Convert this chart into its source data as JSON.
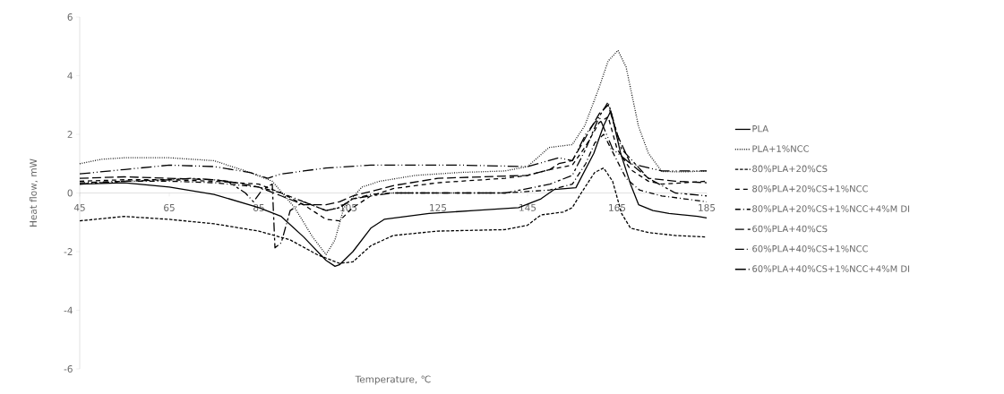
{
  "chart_data": {
    "type": "line",
    "xlabel": "Temperature, ℃",
    "ylabel": "Heat flow, mW",
    "xlim": [
      45,
      185
    ],
    "ylim": [
      -6,
      6
    ],
    "xticks": [
      45,
      65,
      85,
      105,
      125,
      145,
      165,
      185
    ],
    "yticks": [
      -6,
      -4,
      -2,
      0,
      2,
      4,
      6
    ],
    "legend": "right",
    "grid": false,
    "marker": "none",
    "series": [
      {
        "name": "PLA",
        "color": "#000000",
        "line_style": "solid",
        "x": [
          45,
          55,
          65,
          75,
          85,
          90,
          95,
          100,
          102,
          103,
          106,
          110,
          113,
          118,
          123,
          133,
          143,
          148,
          151,
          155.8,
          159.8,
          162,
          163.6,
          165.8,
          168,
          169.8,
          173,
          176.6,
          183,
          185
        ],
        "values": [
          0.3,
          0.35,
          0.2,
          -0.05,
          -0.5,
          -0.8,
          -1.5,
          -2.3,
          -2.5,
          -2.45,
          -2.0,
          -1.2,
          -0.9,
          -0.8,
          -0.7,
          -0.6,
          -0.5,
          -0.2,
          0.12,
          0.18,
          1.35,
          2.3,
          2.8,
          1.35,
          0.3,
          -0.4,
          -0.6,
          -0.7,
          -0.8,
          -0.85
        ]
      },
      {
        "name": "PLA+1%NCC",
        "color": "#000000",
        "line_style": "dotted",
        "x": [
          45,
          50,
          55,
          65,
          75,
          83,
          88,
          93,
          97,
          100,
          102,
          104,
          108,
          112,
          120,
          130,
          140,
          145,
          149.8,
          155,
          157.8,
          161,
          163,
          165.2,
          167,
          169.8,
          172,
          175,
          180,
          185
        ],
        "values": [
          1.0,
          1.15,
          1.2,
          1.2,
          1.1,
          0.7,
          0.4,
          -0.5,
          -1.5,
          -2.1,
          -1.6,
          -0.5,
          0.2,
          0.4,
          0.6,
          0.7,
          0.75,
          0.9,
          1.55,
          1.65,
          2.3,
          3.6,
          4.5,
          4.86,
          4.3,
          2.26,
          1.35,
          0.73,
          0.72,
          0.75
        ]
      },
      {
        "name": "80%PLA+20%CS",
        "color": "#000000",
        "line_style": "dashed",
        "x": [
          45,
          55,
          65,
          75,
          85,
          92,
          98,
          103,
          106,
          110,
          115,
          125,
          140,
          145,
          148,
          153,
          155,
          157,
          160,
          162,
          164,
          166,
          168,
          172,
          178,
          185
        ],
        "values": [
          -0.95,
          -0.8,
          -0.9,
          -1.05,
          -1.3,
          -1.6,
          -2.1,
          -2.4,
          -2.35,
          -1.8,
          -1.45,
          -1.3,
          -1.25,
          -1.1,
          -0.75,
          -0.65,
          -0.5,
          0.0,
          0.7,
          0.85,
          0.4,
          -0.7,
          -1.2,
          -1.35,
          -1.45,
          -1.5
        ]
      },
      {
        "name": "80%PLA+20%CS+1%NCC",
        "color": "#000000",
        "line_style": "loosely dashed",
        "x": [
          45,
          55,
          65,
          75,
          85,
          90,
          95,
          100,
          103,
          106,
          110,
          115,
          125,
          140,
          145,
          150,
          155,
          158,
          161,
          163,
          165,
          168,
          172,
          175,
          180,
          185
        ],
        "values": [
          0.4,
          0.45,
          0.45,
          0.4,
          0.3,
          0.0,
          -0.4,
          -0.9,
          -0.95,
          -0.5,
          -0.1,
          0.15,
          0.35,
          0.5,
          0.6,
          0.8,
          0.95,
          1.6,
          2.4,
          2.6,
          1.5,
          0.8,
          0.4,
          0.3,
          0.35,
          0.4
        ]
      },
      {
        "name": "80%PLA+20%CS+1%NCC+4%M DI",
        "color": "#000000",
        "line_style": "dashdot",
        "x": [
          45,
          55,
          65,
          75,
          85,
          90,
          95,
          100,
          103,
          106,
          110,
          115,
          125,
          140,
          145,
          150,
          155,
          158,
          160,
          162,
          164,
          167,
          170,
          175,
          180,
          185
        ],
        "values": [
          0.35,
          0.4,
          0.4,
          0.35,
          0.2,
          0.0,
          -0.3,
          -0.6,
          -0.5,
          -0.2,
          -0.05,
          0.0,
          0.0,
          0.0,
          0.05,
          0.1,
          0.3,
          1.0,
          1.7,
          2.0,
          1.4,
          0.5,
          0.1,
          -0.1,
          -0.2,
          -0.3
        ]
      },
      {
        "name": "60%PLA+40%CS",
        "color": "#000000",
        "line_style": "long dashed",
        "x": [
          45,
          55,
          65,
          75,
          80,
          85,
          90,
          95,
          100,
          103,
          106,
          110,
          115,
          125,
          135,
          145,
          150,
          152,
          155,
          158,
          161,
          163,
          165,
          168,
          172,
          178,
          185
        ],
        "values": [
          0.5,
          0.55,
          0.5,
          0.45,
          0.35,
          0.2,
          -0.1,
          -0.4,
          -0.4,
          -0.3,
          -0.1,
          0.05,
          0.25,
          0.5,
          0.55,
          0.6,
          0.8,
          1.0,
          1.1,
          1.9,
          2.7,
          3.0,
          2.0,
          1.0,
          0.5,
          0.4,
          0.35
        ]
      },
      {
        "name": "60%PLA+40%CS+1%NCC",
        "color": "#000000",
        "line_style": "dash dot dot",
        "x": [
          45,
          55,
          65,
          70,
          75,
          78,
          82,
          83.8,
          85.8,
          88,
          88.6,
          90,
          92,
          95,
          100,
          103,
          106,
          110,
          115,
          125,
          140,
          150,
          155,
          158,
          161,
          163,
          166,
          172,
          178,
          185
        ],
        "values": [
          0.3,
          0.4,
          0.45,
          0.5,
          0.45,
          0.4,
          0.0,
          -0.3,
          0.12,
          0.3,
          -1.87,
          -1.7,
          -0.6,
          -0.3,
          -0.6,
          -0.5,
          -0.2,
          -0.1,
          0.0,
          0.0,
          0.0,
          0.3,
          0.6,
          1.5,
          2.6,
          3.1,
          1.5,
          0.5,
          0.0,
          -0.1
        ]
      },
      {
        "name": "60%PLA+40%CS+1%NCC+4%M DI",
        "color": "#000000",
        "line_style": "long dash dot dot",
        "x": [
          45,
          55,
          65,
          75,
          83,
          87,
          89.8,
          95,
          100,
          110,
          120,
          130,
          145,
          152,
          155,
          158,
          161,
          164,
          168,
          175,
          185
        ],
        "values": [
          0.65,
          0.8,
          0.95,
          0.9,
          0.7,
          0.5,
          0.64,
          0.75,
          0.85,
          0.95,
          0.95,
          0.95,
          0.9,
          1.2,
          1.1,
          2.0,
          2.6,
          1.5,
          1.0,
          0.75,
          0.75
        ]
      }
    ]
  }
}
